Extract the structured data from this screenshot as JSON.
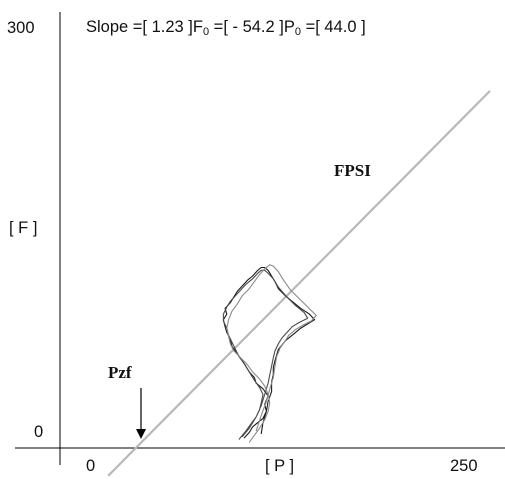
{
  "chart_data": {
    "type": "line",
    "title": "",
    "header": {
      "slope_label": "Slope =[ ",
      "slope_value": "1.23",
      "f0_label": " ]F",
      "f0_sub": "0",
      "f0_eq": " =[  - ",
      "f0_value": "54.2",
      "p0_label": " ]P",
      "p0_sub": "0",
      "p0_eq": " =[ ",
      "p0_value": "44.0",
      "close": " ]"
    },
    "xlabel": "[ P ]",
    "ylabel": "[ F ]",
    "xlim": [
      0,
      250
    ],
    "ylim": [
      0,
      300
    ],
    "x_ticks": [
      "0",
      "250"
    ],
    "y_ticks": [
      "0",
      "300"
    ],
    "grid": false,
    "fit_line": {
      "name": "FPSI",
      "slope": 1.23,
      "intercept": -54.2,
      "x_range": [
        28,
        250
      ],
      "color": "#b8b8b8"
    },
    "annotations": [
      {
        "text": "FPSI",
        "x": 150,
        "y": 225
      },
      {
        "text": "Pzf",
        "x": 30,
        "y": 55,
        "arrow_to": [
          44,
          0
        ]
      }
    ],
    "loops": [
      {
        "color": "#1a1a1a",
        "x": [
          107,
          110,
          112,
          115,
          118,
          120,
          119,
          121,
          118,
          114,
          113,
          110,
          108,
          106,
          103,
          100,
          99,
          97,
          96,
          95,
          97,
          96,
          99,
          101,
          103,
          106,
          109,
          112,
          115,
          117,
          119,
          121,
          123,
          125,
          127,
          131,
          135,
          140,
          145,
          148,
          144,
          140,
          137,
          134,
          131,
          129,
          127,
          126,
          125,
          124,
          124,
          123,
          123,
          121,
          120,
          118,
          117
        ],
        "y": [
          7,
          11,
          15,
          18,
          21,
          26,
          31,
          37,
          42,
          46,
          50,
          54,
          58,
          62,
          67,
          72,
          77,
          82,
          86,
          91,
          95,
          99,
          103,
          107,
          111,
          115,
          119,
          122,
          126,
          128,
          128,
          126,
          122,
          118,
          113,
          108,
          104,
          99,
          95,
          91,
          88,
          85,
          82,
          79,
          76,
          73,
          70,
          66,
          62,
          57,
          52,
          47,
          40,
          33,
          26,
          18,
          10
        ]
      },
      {
        "color": "#4a4a4a",
        "x": [
          104,
          108,
          111,
          114,
          116,
          117,
          118,
          116,
          113,
          111,
          109,
          107,
          104,
          102,
          100,
          98,
          97,
          95,
          95,
          97,
          99,
          102,
          105,
          108,
          112,
          115,
          117,
          119,
          121,
          124,
          127,
          132,
          137,
          142,
          144,
          139,
          135,
          132,
          129,
          127,
          125,
          124,
          123,
          122,
          121,
          119,
          117,
          114,
          110,
          106
        ],
        "y": [
          6,
          12,
          17,
          22,
          27,
          32,
          38,
          43,
          48,
          52,
          56,
          60,
          65,
          70,
          75,
          80,
          85,
          90,
          95,
          100,
          104,
          108,
          112,
          116,
          120,
          124,
          126,
          126,
          124,
          120,
          114,
          107,
          101,
          96,
          92,
          89,
          86,
          82,
          78,
          74,
          69,
          64,
          58,
          52,
          46,
          38,
          30,
          22,
          14,
          8
        ]
      },
      {
        "color": "#8a8a8a",
        "x": [
          110,
          113,
          116,
          119,
          121,
          122,
          121,
          119,
          116,
          112,
          109,
          105,
          101,
          99,
          98,
          97,
          98,
          100,
          103,
          106,
          110,
          113,
          116,
          119,
          122,
          124,
          127,
          130,
          134,
          139,
          144,
          149,
          146,
          141,
          137,
          133,
          131,
          128,
          126,
          125,
          124,
          122,
          120,
          117,
          114
        ],
        "y": [
          4,
          9,
          14,
          20,
          26,
          32,
          38,
          44,
          49,
          54,
          59,
          64,
          69,
          74,
          79,
          85,
          91,
          97,
          102,
          108,
          113,
          118,
          123,
          127,
          130,
          129,
          125,
          119,
          112,
          106,
          100,
          94,
          90,
          87,
          84,
          80,
          76,
          71,
          65,
          58,
          50,
          42,
          33,
          23,
          12
        ]
      }
    ]
  }
}
